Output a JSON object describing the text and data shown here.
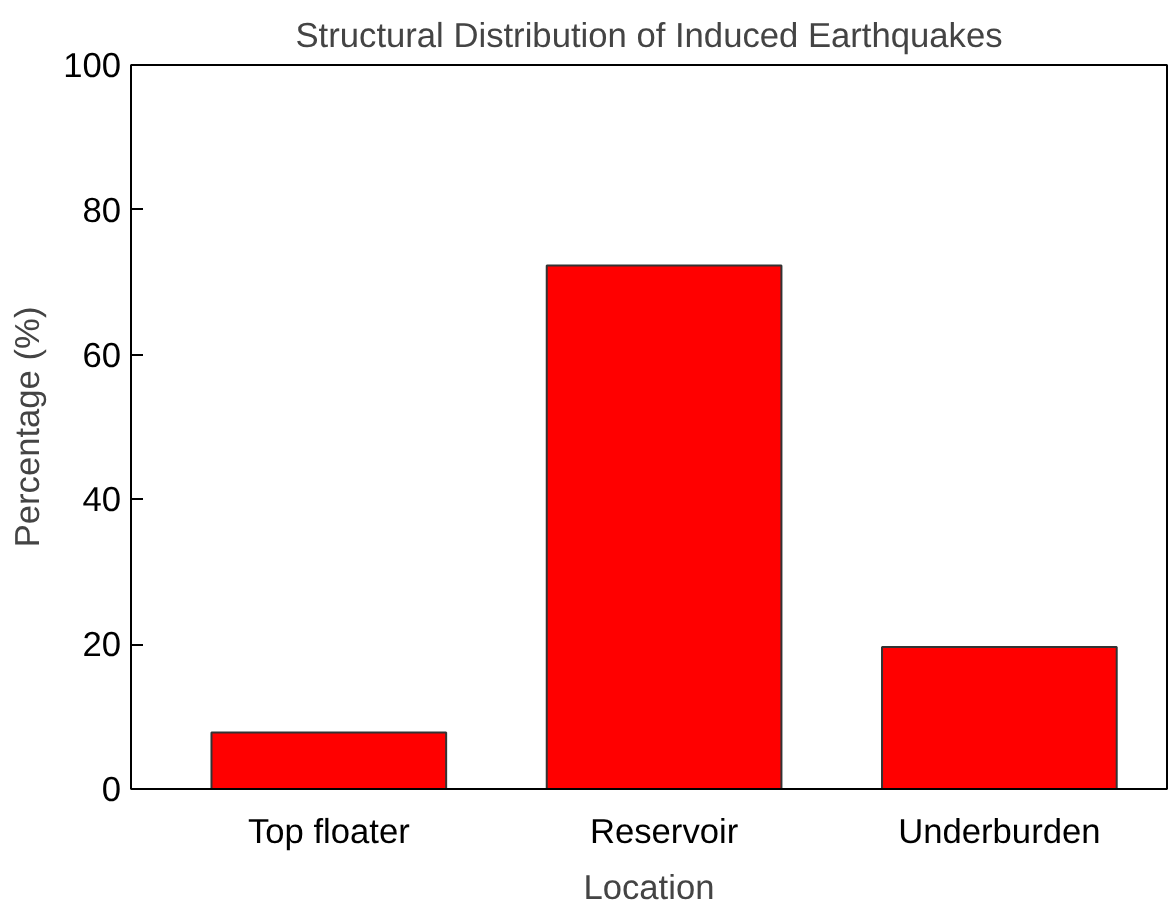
{
  "chart_data": {
    "type": "bar",
    "title": "Structural Distribution of Induced Earthquakes",
    "xlabel": "Location",
    "ylabel": "Percentage (%)",
    "categories": [
      "Top floater",
      "Reservoir",
      "Underburden"
    ],
    "values": [
      7.8,
      72.3,
      19.6
    ],
    "color": "#ff0000",
    "ylim": [
      0,
      100
    ],
    "yticks": [
      0,
      20,
      40,
      60,
      80,
      100
    ],
    "grid": false
  }
}
